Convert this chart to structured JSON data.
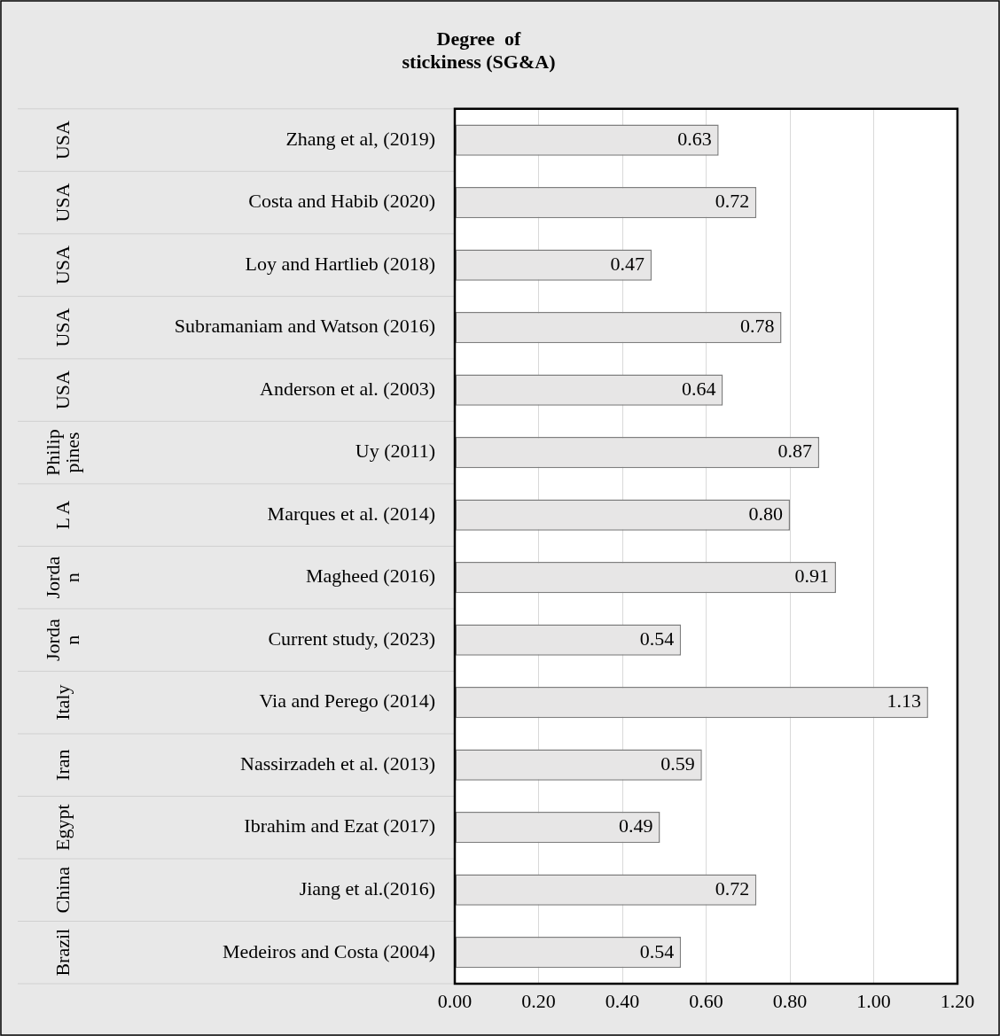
{
  "chart_data": {
    "type": "bar",
    "orientation": "horizontal",
    "title": "Degree  of\nstickiness (SG&A)",
    "categories": [
      "Zhang et al, (2019)",
      "Costa and Habib (2020)",
      "Loy and Hartlieb (2018)",
      "Subramaniam and Watson (2016)",
      "Anderson et al. (2003)",
      "Uy (2011)",
      "Marques et al. (2014)",
      "Magheed (2016)",
      "Current study, (2023)",
      "Via and Perego (2014)",
      "Nassirzadeh et al. (2013)",
      "Ibrahim and Ezat (2017)",
      "Jiang et al.(2016)",
      "Medeiros and Costa (2004)"
    ],
    "values": [
      0.63,
      0.72,
      0.47,
      0.78,
      0.64,
      0.87,
      0.8,
      0.91,
      0.54,
      1.13,
      0.59,
      0.49,
      0.72,
      0.54
    ],
    "value_labels": [
      "0.63",
      "0.72",
      "0.47",
      "0.78",
      "0.64",
      "0.87",
      "0.80",
      "0.91",
      "0.54",
      "1.13",
      "0.59",
      "0.49",
      "0.72",
      "0.54"
    ],
    "color": "#e7e6e6",
    "xlim": [
      0,
      1.2
    ],
    "xticks": [
      {
        "value": 0,
        "label": "0.00"
      },
      {
        "value": 0.2,
        "label": "0.20"
      },
      {
        "value": 0.4,
        "label": "0.40"
      },
      {
        "value": 0.6,
        "label": "0.60"
      },
      {
        "value": 0.8,
        "label": "0.80"
      },
      {
        "value": 1,
        "label": "1.00"
      },
      {
        "value": 1.2,
        "label": "1.20"
      }
    ],
    "grid": "x",
    "legend": false,
    "annotations": [
      "USA",
      "USA",
      "USA",
      "USA",
      "USA",
      "Philippines",
      "L A",
      "Jordan",
      "Jordan",
      "Italy",
      "Iran",
      "Egypt",
      "China",
      "Brazil"
    ]
  }
}
